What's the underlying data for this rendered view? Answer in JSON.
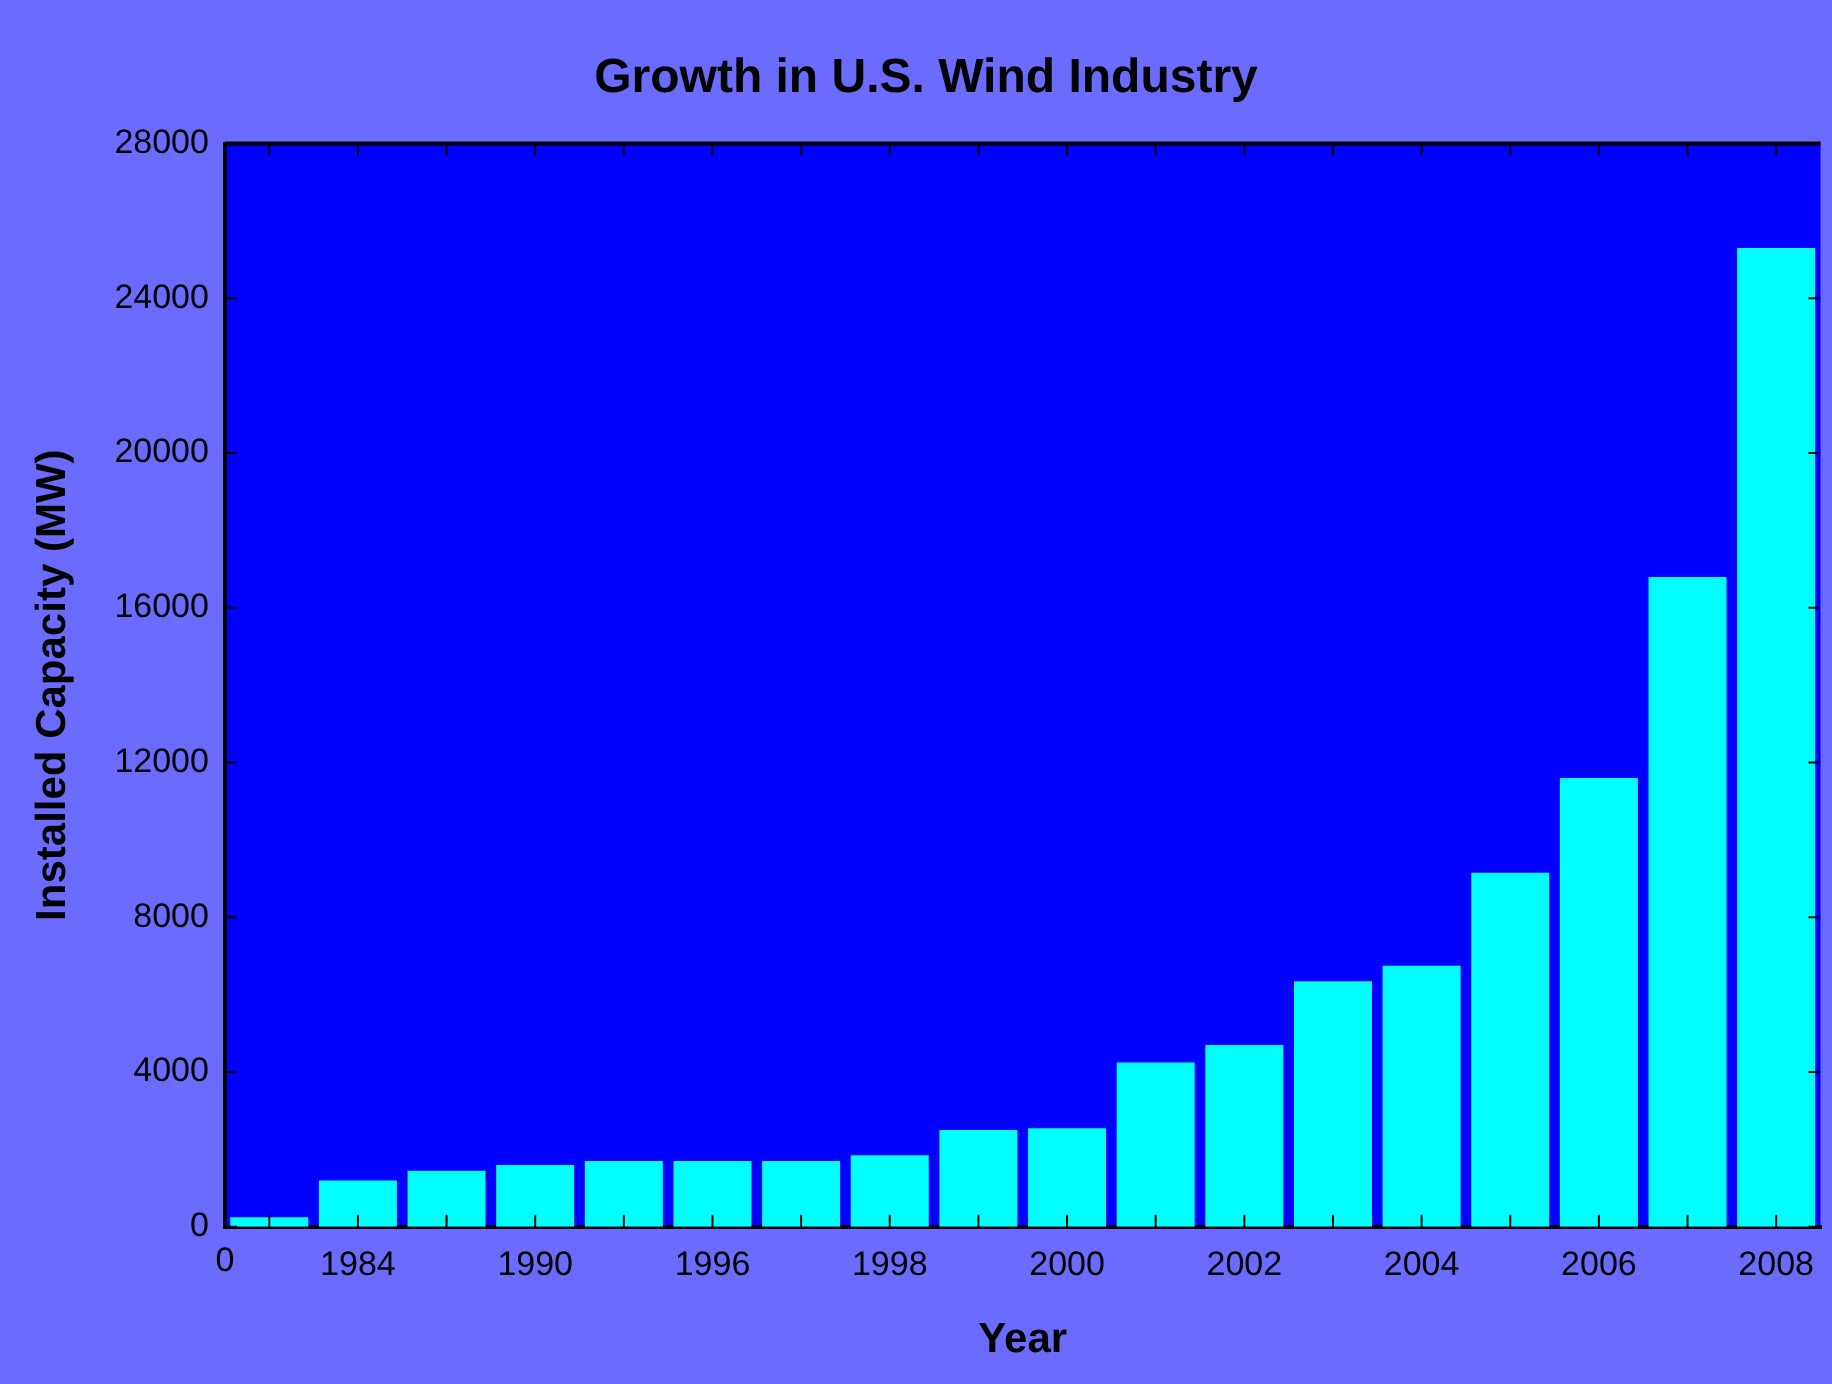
{
  "chart_data": {
    "type": "bar",
    "title": "Growth in U.S. Wind Industry",
    "xlabel": "Year",
    "ylabel": "Installed Capacity (MW)",
    "categories": [
      null,
      "1984",
      null,
      "1990",
      null,
      "1996",
      null,
      "1998",
      null,
      "2000",
      null,
      "2002",
      null,
      "2004",
      null,
      "2006",
      null,
      "2008"
    ],
    "values": [
      250,
      1200,
      1450,
      1600,
      1700,
      1700,
      1700,
      1850,
      2500,
      2550,
      4250,
      4700,
      6350,
      6750,
      9150,
      11600,
      16800,
      25300
    ],
    "color": "#00ffff",
    "ylim": [
      0,
      28000
    ],
    "yticks": [
      0,
      4000,
      8000,
      12000,
      16000,
      20000,
      24000,
      28000
    ],
    "grid": false,
    "legend": false,
    "annotations": [
      "0"
    ]
  }
}
